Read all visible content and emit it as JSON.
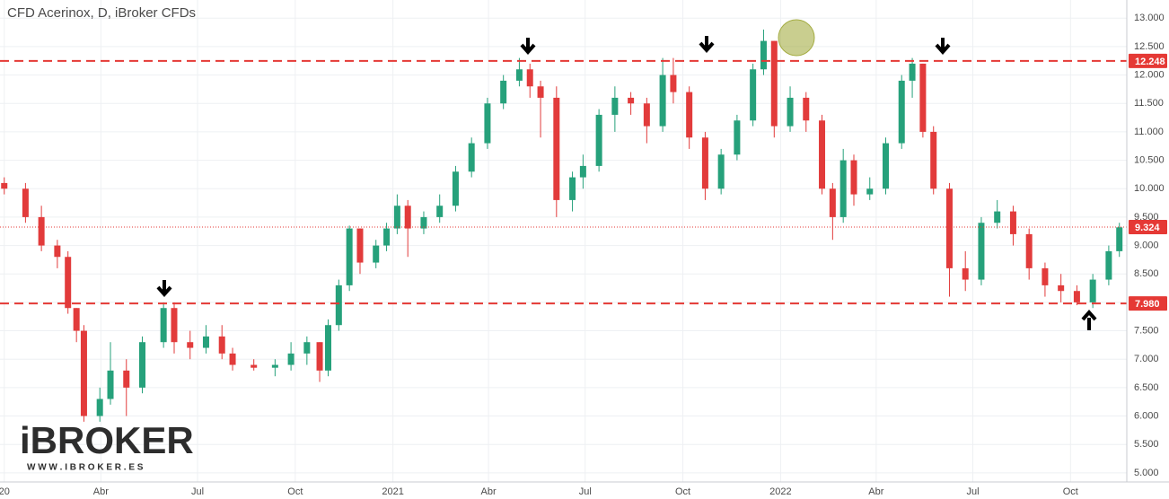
{
  "chart_data": {
    "type": "candlestick",
    "title": "CFD Acerinox, D, iBroker CFDs",
    "up_color": "#26a17b",
    "down_color": "#e23b3b",
    "x": [
      0,
      20,
      35,
      50,
      60,
      68,
      75,
      90,
      100,
      115,
      130,
      150,
      160,
      175,
      190,
      205,
      215,
      235,
      255,
      270,
      285,
      297,
      305,
      315,
      325,
      335,
      350,
      360,
      370,
      380,
      395,
      410,
      425,
      440,
      455,
      470,
      485,
      495,
      505,
      520,
      535,
      545,
      560,
      575,
      590,
      605,
      620,
      630,
      645,
      660,
      675,
      690,
      705,
      715,
      725,
      740,
      755,
      770,
      780,
      790,
      800,
      815,
      830,
      845,
      855,
      865,
      875,
      890,
      905,
      920,
      935,
      950,
      965,
      980,
      995,
      1010,
      1025,
      1040,
      1050
    ],
    "open": [
      10.1,
      10.0,
      9.5,
      9.0,
      8.8,
      7.9,
      7.5,
      6.0,
      6.3,
      6.8,
      6.5,
      7.3,
      7.9,
      7.3,
      7.2,
      7.4,
      7.1,
      6.9,
      6.85,
      6.9,
      7.1,
      7.3,
      6.8,
      7.6,
      8.3,
      9.3,
      8.7,
      9.0,
      9.3,
      9.7,
      9.3,
      9.5,
      9.7,
      10.3,
      10.8,
      11.5,
      11.9,
      12.1,
      11.8,
      11.6,
      9.8,
      10.2,
      10.4,
      11.3,
      11.6,
      11.5,
      11.1,
      12.0,
      11.7,
      10.9,
      10.0,
      10.6,
      11.2,
      12.1,
      12.6,
      11.1,
      11.6,
      11.2,
      10.0,
      9.5,
      10.5,
      9.9,
      10.0,
      10.8,
      11.9,
      12.2,
      11.0,
      10.0,
      8.6,
      8.4,
      9.4,
      9.6,
      9.2,
      8.6,
      8.3,
      8.2,
      8.0,
      8.4,
      8.9
    ],
    "high": [
      10.2,
      10.1,
      9.7,
      9.1,
      8.9,
      7.9,
      7.6,
      6.5,
      7.3,
      7.0,
      7.4,
      8.0,
      8.0,
      7.5,
      7.6,
      7.6,
      7.2,
      7.0,
      7.0,
      7.3,
      7.4,
      7.3,
      7.7,
      8.4,
      9.35,
      9.3,
      9.1,
      9.4,
      9.9,
      9.8,
      9.6,
      9.9,
      10.4,
      10.9,
      11.6,
      12.0,
      12.3,
      12.2,
      11.9,
      11.8,
      10.3,
      10.6,
      11.4,
      11.8,
      11.7,
      11.6,
      12.3,
      12.3,
      11.8,
      11.0,
      10.7,
      11.3,
      12.2,
      12.8,
      12.6,
      11.8,
      11.7,
      11.3,
      10.1,
      10.7,
      10.6,
      10.2,
      10.9,
      12.0,
      12.3,
      12.2,
      11.1,
      10.1,
      8.9,
      9.5,
      9.8,
      9.7,
      9.3,
      8.7,
      8.5,
      8.3,
      8.5,
      9.0,
      9.4
    ],
    "low": [
      9.9,
      9.4,
      8.9,
      8.6,
      7.8,
      7.3,
      5.9,
      5.9,
      6.2,
      6.0,
      6.4,
      7.2,
      7.1,
      7.0,
      7.1,
      7.0,
      6.8,
      6.8,
      6.7,
      6.8,
      6.9,
      6.6,
      6.7,
      7.5,
      8.2,
      8.5,
      8.6,
      8.9,
      9.2,
      8.8,
      9.2,
      9.4,
      9.6,
      10.2,
      10.7,
      11.4,
      11.8,
      11.6,
      10.9,
      9.5,
      9.6,
      10.0,
      10.3,
      11.0,
      11.3,
      10.8,
      11.0,
      11.5,
      10.7,
      9.8,
      9.9,
      10.5,
      11.1,
      12.0,
      10.9,
      11.0,
      11.0,
      9.9,
      9.1,
      9.4,
      9.7,
      9.8,
      9.9,
      10.7,
      11.6,
      10.9,
      9.9,
      8.1,
      8.2,
      8.3,
      9.3,
      9.0,
      8.4,
      8.1,
      8.0,
      7.95,
      7.9,
      8.3,
      8.8
    ],
    "close": [
      10.0,
      9.5,
      9.0,
      8.8,
      7.9,
      7.5,
      6.0,
      6.3,
      6.8,
      6.5,
      7.3,
      7.9,
      7.3,
      7.2,
      7.4,
      7.1,
      6.9,
      6.85,
      6.9,
      7.1,
      7.3,
      6.8,
      7.6,
      8.3,
      9.3,
      8.7,
      9.0,
      9.3,
      9.7,
      9.3,
      9.5,
      9.7,
      10.3,
      10.8,
      11.5,
      11.9,
      12.1,
      11.8,
      11.6,
      9.8,
      10.2,
      10.4,
      11.3,
      11.6,
      11.5,
      11.1,
      12.0,
      11.7,
      10.9,
      10.0,
      10.6,
      11.2,
      12.1,
      12.6,
      11.1,
      11.6,
      11.2,
      10.0,
      9.5,
      10.5,
      9.9,
      10.0,
      10.8,
      11.9,
      12.2,
      11.0,
      10.0,
      8.6,
      8.4,
      9.4,
      9.6,
      9.2,
      8.6,
      8.3,
      8.2,
      8.0,
      8.4,
      8.9,
      9.32
    ],
    "xlim": [
      -4,
      1057
    ],
    "xticks": [
      {
        "value": 0,
        "label": "20"
      },
      {
        "value": 91,
        "label": "Abr"
      },
      {
        "value": 182,
        "label": "Jul"
      },
      {
        "value": 274,
        "label": "Oct"
      },
      {
        "value": 366,
        "label": "2021"
      },
      {
        "value": 456,
        "label": "Abr"
      },
      {
        "value": 547,
        "label": "Jul"
      },
      {
        "value": 639,
        "label": "Oct"
      },
      {
        "value": 731,
        "label": "2022"
      },
      {
        "value": 821,
        "label": "Abr"
      },
      {
        "value": 912,
        "label": "Jul"
      },
      {
        "value": 1004,
        "label": "Oct"
      }
    ],
    "ylim": [
      4.84,
      13.32
    ],
    "yticks": [
      {
        "value": 5,
        "label": "5.000"
      },
      {
        "value": 5.5,
        "label": "5.500"
      },
      {
        "value": 6,
        "label": "6.000"
      },
      {
        "value": 6.5,
        "label": "6.500"
      },
      {
        "value": 7,
        "label": "7.000"
      },
      {
        "value": 7.5,
        "label": "7.500"
      },
      {
        "value": 8,
        "label": "8.000"
      },
      {
        "value": 8.5,
        "label": "8.500"
      },
      {
        "value": 9,
        "label": "9.000"
      },
      {
        "value": 9.5,
        "label": "9.500"
      },
      {
        "value": 10,
        "label": "10.000"
      },
      {
        "value": 10.5,
        "label": "10.500"
      },
      {
        "value": 11,
        "label": "11.000"
      },
      {
        "value": 11.5,
        "label": "11.500"
      },
      {
        "value": 12,
        "label": "12.000"
      },
      {
        "value": 12.5,
        "label": "12.500"
      },
      {
        "value": 13,
        "label": "13.000"
      }
    ],
    "grid": true,
    "levels": [
      12.248,
      {
        "value": 7.98,
        "label": "7.980"
      }
    ],
    "level_color": "#e53935",
    "last_price": 9.324,
    "logo": {
      "brand": "iBROKER",
      "url": "W W W . I B R O K E R . E S"
    }
  }
}
